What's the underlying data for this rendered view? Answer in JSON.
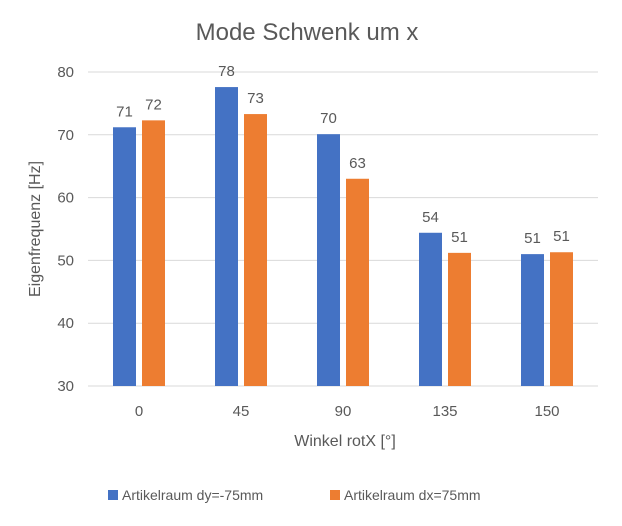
{
  "chart_data": {
    "type": "bar",
    "title": "Mode Schwenk um x",
    "xlabel": "Winkel rotX [°]",
    "ylabel": "Eigenfrequenz [Hz]",
    "categories": [
      "0",
      "45",
      "90",
      "135",
      "150"
    ],
    "ylim": [
      30,
      80
    ],
    "yticks": [
      30,
      40,
      50,
      60,
      70,
      80
    ],
    "grid": true,
    "legend_position": "bottom",
    "series": [
      {
        "name": "Artikelraum dy=-75mm",
        "color": "#4472C4",
        "values": [
          71.2,
          77.6,
          70.1,
          54.4,
          51.0
        ],
        "labels": [
          "71",
          "78",
          "70",
          "54",
          "51"
        ]
      },
      {
        "name": "Artikelraum dx=75mm",
        "color": "#ED7D31",
        "values": [
          72.3,
          73.3,
          63.0,
          51.2,
          51.3
        ],
        "labels": [
          "72",
          "73",
          "63",
          "51",
          "51"
        ]
      }
    ]
  }
}
